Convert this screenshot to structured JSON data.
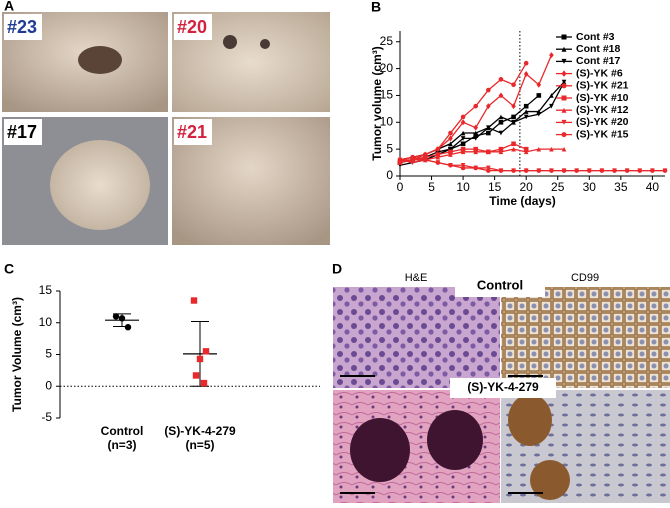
{
  "panel_labels": [
    "A",
    "B",
    "C",
    "D"
  ],
  "photo_labels": [
    "#23",
    "#20",
    "#17",
    "#21"
  ],
  "histology": {
    "columns": [
      "H&E",
      "CD99"
    ],
    "rows": [
      "Control",
      "(S)-YK-4-279"
    ]
  },
  "chart_data": [
    {
      "type": "line",
      "xlabel": "Time (days)",
      "ylabel": "Tumor volume (cm³)",
      "x": [
        0,
        2,
        4,
        6,
        8,
        10,
        12,
        14,
        16,
        18,
        20,
        22,
        24,
        26,
        28,
        30,
        32,
        34,
        36,
        38,
        40,
        42
      ],
      "xlim": [
        0,
        42
      ],
      "ylim": [
        0,
        27
      ],
      "xticks": [
        0,
        5,
        10,
        15,
        20,
        25,
        30,
        35,
        40
      ],
      "yticks": [
        0,
        5,
        10,
        15,
        20,
        25
      ],
      "vline": 19,
      "series": [
        {
          "name": "Cont #3",
          "color": "#000000",
          "marker": "square",
          "values": [
            2.5,
            3,
            3.5,
            4.5,
            5,
            6,
            7.5,
            8,
            10,
            11,
            13,
            15,
            null,
            null,
            null,
            null,
            null,
            null,
            null,
            null,
            null,
            null
          ]
        },
        {
          "name": "Cont #18",
          "color": "#000000",
          "marker": "triangle-up",
          "values": [
            3,
            3.5,
            4,
            5,
            6,
            8,
            8,
            9,
            11,
            10,
            12,
            12,
            15,
            17.5,
            null,
            null,
            null,
            null,
            null,
            null,
            null,
            null
          ]
        },
        {
          "name": "Cont #17",
          "color": "#000000",
          "marker": "triangle-down",
          "values": [
            2,
            2.5,
            3,
            4,
            5,
            7,
            7,
            9,
            8,
            10,
            11,
            11.5,
            13,
            17.5,
            null,
            null,
            null,
            null,
            null,
            null,
            null,
            null
          ]
        },
        {
          "name": "(S)-YK #6",
          "color": "#e8282b",
          "marker": "diamond",
          "values": [
            3,
            3,
            4,
            5,
            7,
            10,
            9,
            13,
            15,
            13,
            19,
            17,
            22.5,
            null,
            null,
            null,
            null,
            null,
            null,
            null,
            null,
            null
          ]
        },
        {
          "name": "(S)-YK #21",
          "color": "#e8282b",
          "marker": "circle",
          "values": [
            3,
            3.5,
            4,
            5,
            8,
            11,
            13,
            16,
            18,
            17,
            21,
            null,
            null,
            null,
            null,
            null,
            null,
            null,
            null,
            null,
            null,
            null
          ]
        },
        {
          "name": "(S)-YK #10",
          "color": "#e8282b",
          "marker": "square",
          "values": [
            2.5,
            3,
            3.5,
            4,
            4.5,
            5,
            5,
            4.5,
            5,
            6,
            5,
            null,
            null,
            null,
            null,
            null,
            null,
            null,
            null,
            null,
            null,
            null
          ]
        },
        {
          "name": "(S)-YK #12",
          "color": "#e8282b",
          "marker": "triangle-up",
          "values": [
            2.5,
            3,
            3,
            3.5,
            4,
            4.5,
            4.5,
            4.5,
            4.5,
            5,
            4.5,
            5,
            5,
            5,
            null,
            null,
            null,
            null,
            null,
            null,
            null,
            null
          ]
        },
        {
          "name": "(S)-YK #20",
          "color": "#e8282b",
          "marker": "triangle-down",
          "values": [
            3,
            2.5,
            3,
            2.5,
            2,
            2,
            1.5,
            1.5,
            1,
            1,
            1,
            1,
            1,
            1,
            1,
            1,
            1,
            1,
            1,
            1,
            1,
            1
          ]
        },
        {
          "name": "(S)-YK #15",
          "color": "#e8282b",
          "marker": "circle",
          "values": [
            3,
            3.5,
            3,
            2.5,
            2,
            1.5,
            1.5,
            1,
            1,
            1,
            1,
            1,
            1,
            1,
            1,
            1,
            1,
            1,
            1,
            1,
            1,
            1
          ]
        }
      ]
    },
    {
      "type": "dot",
      "ylabel": "Tumor Volume (cm³)",
      "categories": [
        "Control",
        "(S)-YK-4-279"
      ],
      "n_labels": [
        "(n=3)",
        "(n=5)"
      ],
      "colors": [
        "#000000",
        "#e8282b"
      ],
      "markers": [
        "circle",
        "square"
      ],
      "values": [
        [
          11,
          9.3,
          10.7
        ],
        [
          13.5,
          5.5,
          4.3,
          1.7,
          0.5
        ]
      ],
      "mean": [
        10.4,
        5.1
      ],
      "sd": [
        1,
        5.1
      ],
      "ylim": [
        -5,
        15
      ],
      "yticks": [
        -5,
        0,
        5,
        10,
        15
      ]
    }
  ]
}
